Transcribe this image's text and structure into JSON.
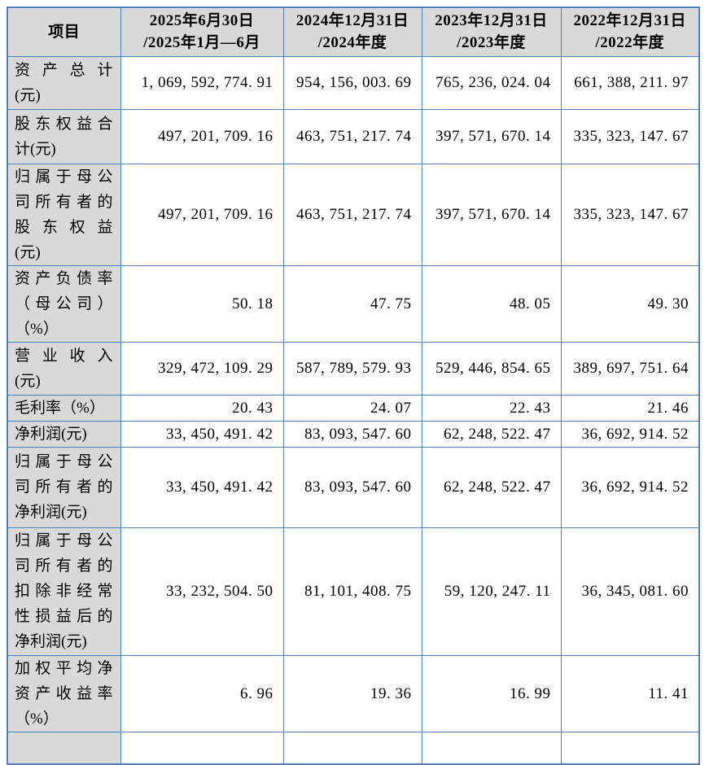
{
  "colors": {
    "border": "#4e81bd",
    "header_bg": "#d9d9d9",
    "text": "#000000",
    "page_bg": "#ffffff"
  },
  "table": {
    "columns": [
      {
        "label": "项目",
        "lines": [
          "项目"
        ]
      },
      {
        "label": "2025年6月30日/2025年1月—6月",
        "lines": [
          "2025年6月30日",
          "/2025年1月—6月"
        ]
      },
      {
        "label": "2024年12月31日/2024年度",
        "lines": [
          "2024年12月31日",
          "/2024年度"
        ]
      },
      {
        "label": "2023年12月31日/2023年度",
        "lines": [
          "2023年12月31日",
          "/2023年度"
        ]
      },
      {
        "label": "2022年12月31日/2022年度",
        "lines": [
          "2022年12月31日",
          "/2022年度"
        ]
      }
    ],
    "rows": [
      {
        "label": "资产总计(元)",
        "label_lines": [
          "资产总计",
          "(元)"
        ],
        "values": [
          "1, 069, 592, 774. 91",
          "954, 156, 003. 69",
          "765, 236, 024. 04",
          "661, 388, 211. 97"
        ]
      },
      {
        "label": "股东权益合计(元)",
        "label_lines": [
          "股东权益合",
          "计(元)"
        ],
        "values": [
          "497, 201, 709. 16",
          "463, 751, 217. 74",
          "397, 571, 670. 14",
          "335, 323, 147. 67"
        ]
      },
      {
        "label": "归属于母公司所有者的股东权益(元)",
        "label_lines": [
          "归属于母公",
          "司所有者的",
          "股东权益",
          "(元)"
        ],
        "values": [
          "497, 201, 709. 16",
          "463, 751, 217. 74",
          "397, 571, 670. 14",
          "335, 323, 147. 67"
        ]
      },
      {
        "label": "资产负债率（母公司）（%）",
        "label_lines": [
          "资产负债率",
          "（母公司）",
          "（%）"
        ],
        "values": [
          "50. 18",
          "47. 75",
          "48. 05",
          "49. 30"
        ]
      },
      {
        "label": "营业收入(元)",
        "label_lines": [
          "营业收入",
          "(元)"
        ],
        "values": [
          "329, 472, 109. 29",
          "587, 789, 579. 93",
          "529, 446, 854. 65",
          "389, 697, 751. 64"
        ]
      },
      {
        "label": "毛利率（%）",
        "label_lines": [
          "毛利率（%）"
        ],
        "values": [
          "20. 43",
          "24. 07",
          "22. 43",
          "21. 46"
        ]
      },
      {
        "label": "净利润(元)",
        "label_lines": [
          "净利润(元)"
        ],
        "values": [
          "33, 450, 491. 42",
          "83, 093, 547. 60",
          "62, 248, 522. 47",
          "36, 692, 914. 52"
        ]
      },
      {
        "label": "归属于母公司所有者的净利润(元)",
        "label_lines": [
          "归属于母公",
          "司所有者的",
          "净利润(元)"
        ],
        "values": [
          "33, 450, 491. 42",
          "83, 093, 547. 60",
          "62, 248, 522. 47",
          "36, 692, 914. 52"
        ]
      },
      {
        "label": "归属于母公司所有者的扣除非经常性损益后的净利润(元)",
        "label_lines": [
          "归属于母公",
          "司所有者的",
          "扣除非经常",
          "性损益后的",
          "净利润(元)"
        ],
        "values": [
          "33, 232, 504. 50",
          "81, 101, 408. 75",
          "59, 120, 247. 11",
          "36, 345, 081. 60"
        ]
      },
      {
        "label": "加权平均净资产收益率（%）",
        "label_lines": [
          "加权平均净",
          "资产收益率",
          "（%）"
        ],
        "values": [
          "6. 96",
          "19. 36",
          "16. 99",
          "11. 41"
        ]
      },
      {
        "label": "",
        "label_lines": [],
        "values": [
          "",
          "",
          "",
          ""
        ]
      }
    ]
  }
}
